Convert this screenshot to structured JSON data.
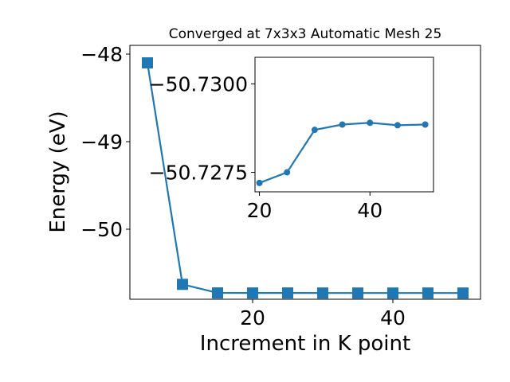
{
  "chart_data": [
    {
      "type": "line",
      "title": "Converged at 7x3x3 Automatic Mesh 25",
      "xlabel": "Increment in K point",
      "ylabel": "Energy (eV)",
      "x": [
        5,
        10,
        15,
        20,
        25,
        30,
        35,
        40,
        45,
        50
      ],
      "series": [
        {
          "values": [
            -48.1,
            -50.63,
            -50.728,
            -50.7286,
            -50.7284,
            -50.7289,
            -50.72915,
            -50.7292,
            -50.72905,
            -50.7291
          ]
        }
      ],
      "xlim": [
        2.5,
        52.5
      ],
      "ylim": [
        -50.8,
        -47.9
      ],
      "xticks": [
        "20",
        "40"
      ],
      "yticks": [
        "−48",
        "−49",
        "−50"
      ],
      "grid": false,
      "marker": "square",
      "color": "#1f77b4"
    },
    {
      "type": "line",
      "x": [
        20,
        25,
        30,
        35,
        40,
        45,
        50
      ],
      "series": [
        {
          "values": [
            -50.7272,
            -50.7275,
            -50.7287,
            -50.72885,
            -50.7289,
            -50.72883,
            -50.72885
          ]
        }
      ],
      "xlim": [
        19.2,
        51.5
      ],
      "ylim": [
        -50.72695,
        -50.73075
      ],
      "xticks": [
        "20",
        "40"
      ],
      "yticks": [
        "−50.7300",
        "−50.7275"
      ],
      "grid": false,
      "marker": "circle",
      "color": "#1f77b4"
    }
  ]
}
